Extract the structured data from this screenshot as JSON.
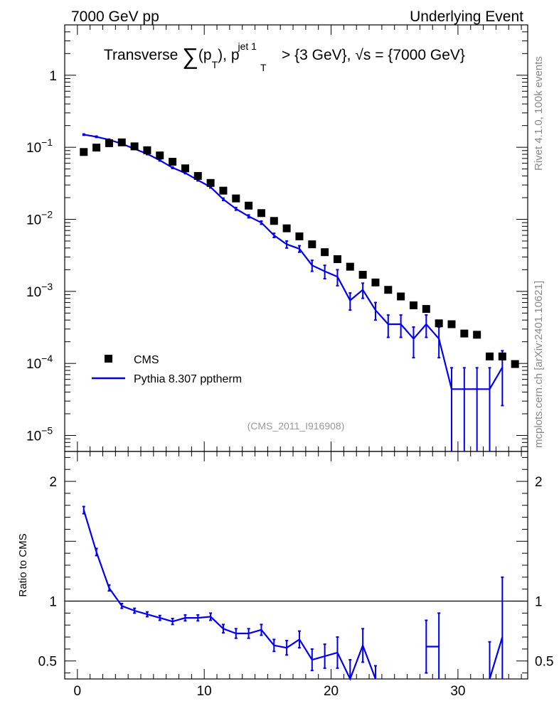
{
  "header": {
    "left": "7000 GeV pp",
    "right": "Underlying Event",
    "side_top": "Rivet 4.1.0,  100k events",
    "side_bottom": "mcplots.cern.ch [arXiv:2401.10621]"
  },
  "chart_data": {
    "type": "scatter",
    "title_parts": {
      "a": "Transverse ",
      "sum": "∑",
      "b": "(p",
      "c": "T",
      "d": "), p",
      "e": "jet 1",
      "f": "T",
      "g": " > {3 GeV}, ",
      "h": "√s",
      "i": " = {7000 GeV}"
    },
    "watermark": "(CMS_2011_I916908)",
    "ratio_ylabel": "Ratio to CMS",
    "xlim": [
      -1,
      35.5
    ],
    "ylim_main": [
      6e-06,
      5
    ],
    "ylim_ratio": [
      0.35,
      2.25
    ],
    "x_ticks": [
      {
        "v": 0,
        "label": "0"
      },
      {
        "v": 10,
        "label": "10"
      },
      {
        "v": 20,
        "label": "20"
      },
      {
        "v": 30,
        "label": "30"
      }
    ],
    "main_ticks": [
      {
        "v": 1,
        "base": "1",
        "exp": ""
      },
      {
        "v": 0.1,
        "base": "10",
        "exp": "−1"
      },
      {
        "v": 0.01,
        "base": "10",
        "exp": "−2"
      },
      {
        "v": 0.001,
        "base": "10",
        "exp": "−3"
      },
      {
        "v": 0.0001,
        "base": "10",
        "exp": "−4"
      },
      {
        "v": 1e-05,
        "base": "10",
        "exp": "−5"
      }
    ],
    "ratio_ticks": [
      {
        "v": 0.5,
        "label": "0.5"
      },
      {
        "v": 1,
        "label": "1"
      },
      {
        "v": 2,
        "label": "2"
      }
    ],
    "legend": {
      "data": "CMS",
      "mc": "Pythia 8.307 pptherm"
    },
    "colors": {
      "data": "#000000",
      "mc": "#0000ee"
    },
    "x": [
      0.5,
      1.5,
      2.5,
      3.5,
      4.5,
      5.5,
      6.5,
      7.5,
      8.5,
      9.5,
      10.5,
      11.5,
      12.5,
      13.5,
      14.5,
      15.5,
      16.5,
      17.5,
      18.5,
      19.5,
      20.5,
      21.5,
      22.5,
      23.5,
      24.5,
      25.5,
      26.5,
      27.5,
      28.5,
      29.5,
      30.5,
      31.5,
      32.5,
      33.5,
      34.5
    ],
    "data_values": [
      0.086,
      0.099,
      0.114,
      0.117,
      0.103,
      0.091,
      0.077,
      0.063,
      0.051,
      0.04,
      0.032,
      0.025,
      0.0195,
      0.0155,
      0.0122,
      0.0095,
      0.0075,
      0.0058,
      0.0045,
      0.0035,
      0.0028,
      0.0022,
      0.0017,
      0.00133,
      0.00105,
      0.00085,
      0.00064,
      0.00057,
      0.00036,
      0.00035,
      0.00026,
      0.00025,
      0.000125,
      0.000125,
      9.8e-05
    ],
    "mc_values": [
      0.15,
      0.14,
      0.127,
      0.112,
      0.095,
      0.081,
      0.066,
      0.052,
      0.044,
      0.035,
      0.028,
      0.019,
      0.014,
      0.011,
      0.009,
      0.006,
      0.0045,
      0.0039,
      0.0023,
      0.0019,
      0.0016,
      0.00075,
      0.00105,
      0.00055,
      0.00035,
      0.00035,
      0.00022,
      0.00035,
      0.00022,
      4.4e-05,
      4.4e-05,
      4.4e-05,
      4.4e-05,
      8.8e-05,
      null
    ],
    "mc_errors": [
      0.003,
      0.003,
      0.003,
      0.002,
      0.002,
      0.002,
      0.0015,
      0.0012,
      0.001,
      0.0009,
      0.0008,
      0.0007,
      0.0006,
      0.0005,
      0.00045,
      0.0004,
      0.0005,
      0.0004,
      0.0004,
      0.0004,
      0.0004,
      0.0002,
      0.00025,
      0.00015,
      0.00012,
      0.00012,
      0.0001,
      0.00012,
      0.0001,
      4.3e-05,
      4.3e-05,
      4.3e-05,
      4.3e-05,
      6.2e-05,
      null
    ],
    "ratio_values": [
      1.76,
      1.41,
      1.11,
      0.96,
      0.92,
      0.89,
      0.86,
      0.83,
      0.86,
      0.86,
      0.87,
      0.77,
      0.73,
      0.73,
      0.76,
      0.63,
      0.61,
      0.68,
      0.51,
      0.54,
      0.57,
      0.31,
      0.63,
      0.31,
      null,
      null,
      null,
      0.62,
      0.62,
      null,
      null,
      null,
      0.31,
      0.7,
      null
    ],
    "ratio_errors": [
      0.03,
      0.03,
      0.025,
      0.02,
      0.02,
      0.02,
      0.02,
      0.025,
      0.025,
      0.025,
      0.03,
      0.035,
      0.04,
      0.04,
      0.045,
      0.05,
      0.06,
      0.07,
      0.09,
      0.1,
      0.13,
      0.2,
      0.14,
      0.15,
      null,
      null,
      null,
      0.22,
      0.28,
      null,
      null,
      null,
      0.35,
      0.5,
      null
    ]
  }
}
